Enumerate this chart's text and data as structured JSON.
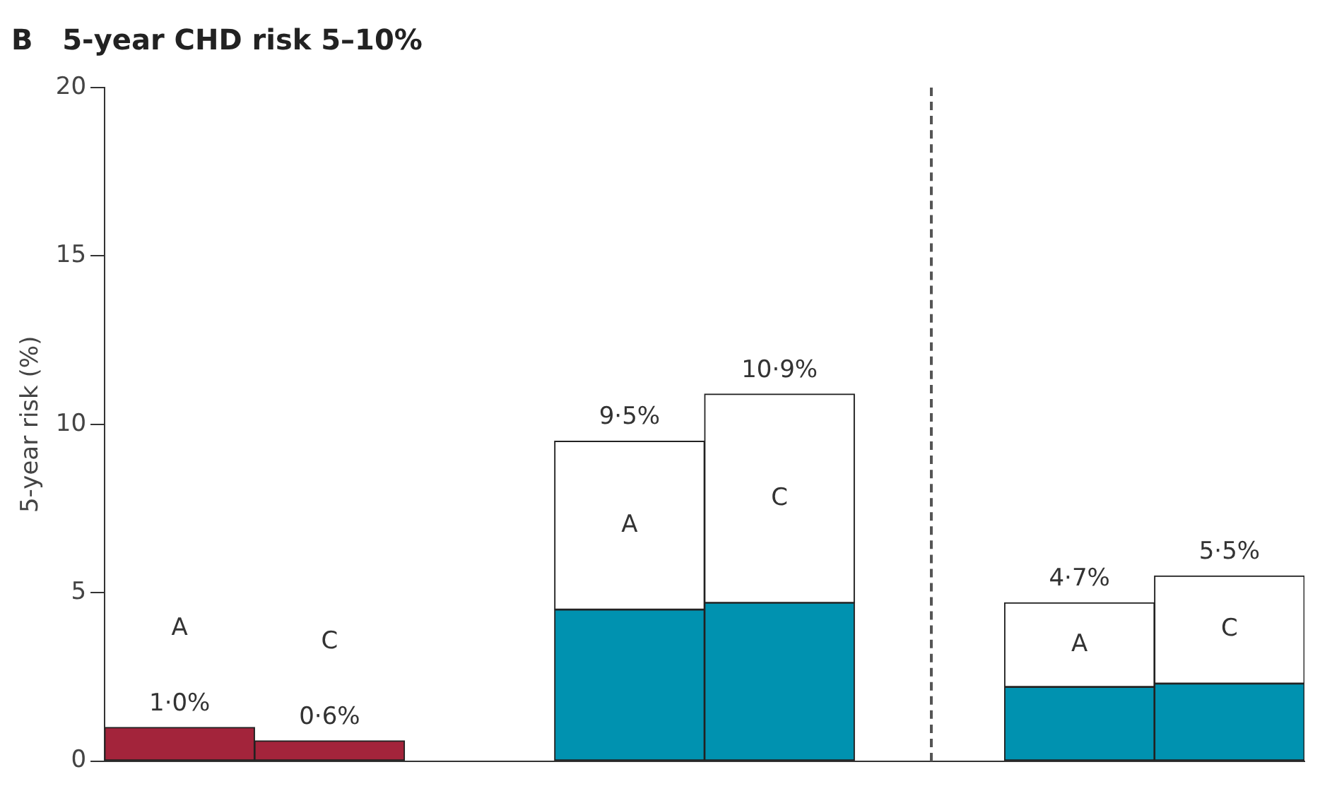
{
  "chart_data": {
    "type": "bar",
    "title": "B   5-year CHD risk 5–10%",
    "ylabel": "5-year risk (%)",
    "stacked": true,
    "categories": [
      null,
      null,
      null,
      null,
      null,
      null,
      null,
      null
    ],
    "series": [
      {
        "color": "#a3243b",
        "values": [
          1.0,
          0.6,
          null,
          null,
          null,
          null,
          null,
          null
        ]
      },
      {
        "color": "#0092b0",
        "values": [
          null,
          null,
          null,
          4.5,
          4.7,
          null,
          2.2,
          2.3
        ]
      },
      {
        "color": "#ffffff",
        "values": [
          null,
          null,
          null,
          5.0,
          6.2,
          null,
          2.5,
          3.2
        ]
      }
    ],
    "totals": [
      "1·0%",
      "0·6%",
      null,
      "9·5%",
      "10·9%",
      null,
      "4·7%",
      "5·5%"
    ],
    "annotations": [
      "A",
      "C",
      "A",
      "C",
      "A",
      "C"
    ],
    "ylim": [
      0,
      20
    ],
    "yticks": [
      0,
      5,
      10,
      15,
      20
    ],
    "legend": false
  }
}
